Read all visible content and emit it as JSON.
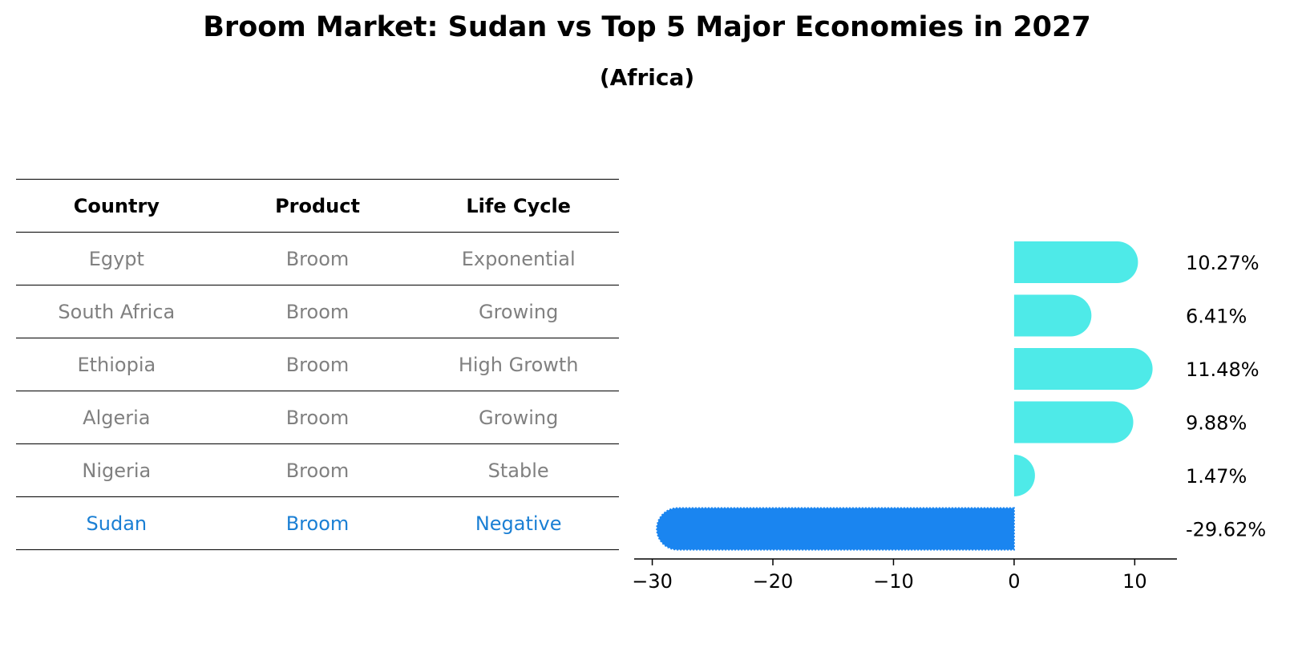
{
  "title": "Broom Market: Sudan vs Top 5 Major Economies in 2027",
  "subtitle": "(Africa)",
  "table": {
    "headers": [
      "Country",
      "Product",
      "Life Cycle"
    ],
    "rows": [
      [
        "Egypt",
        "Broom",
        "Exponential"
      ],
      [
        "South Africa",
        "Broom",
        "Growing"
      ],
      [
        "Ethiopia",
        "Broom",
        "High Growth"
      ],
      [
        "Algeria",
        "Broom",
        "Growing"
      ],
      [
        "Nigeria",
        "Broom",
        "Stable"
      ],
      [
        "Sudan",
        "Broom",
        "Negative"
      ]
    ]
  },
  "chart_data": {
    "type": "bar",
    "orientation": "horizontal",
    "categories": [
      "Egypt",
      "South Africa",
      "Ethiopia",
      "Algeria",
      "Nigeria",
      "Sudan"
    ],
    "values": [
      10.27,
      6.41,
      11.48,
      9.88,
      1.47,
      -29.62
    ],
    "labels": [
      "10.27%",
      "6.41%",
      "11.48%",
      "9.88%",
      "1.47%",
      "-29.62%"
    ],
    "xlim": [
      -31.5,
      13.5
    ],
    "xticks": [
      -30,
      -20,
      -10,
      0,
      10
    ],
    "xtick_labels": [
      "−30",
      "−20",
      "−10",
      "0",
      "10"
    ],
    "colors": {
      "positive": "#4eeae8",
      "highlight": "#1a85f0"
    },
    "highlight_index": 5
  }
}
